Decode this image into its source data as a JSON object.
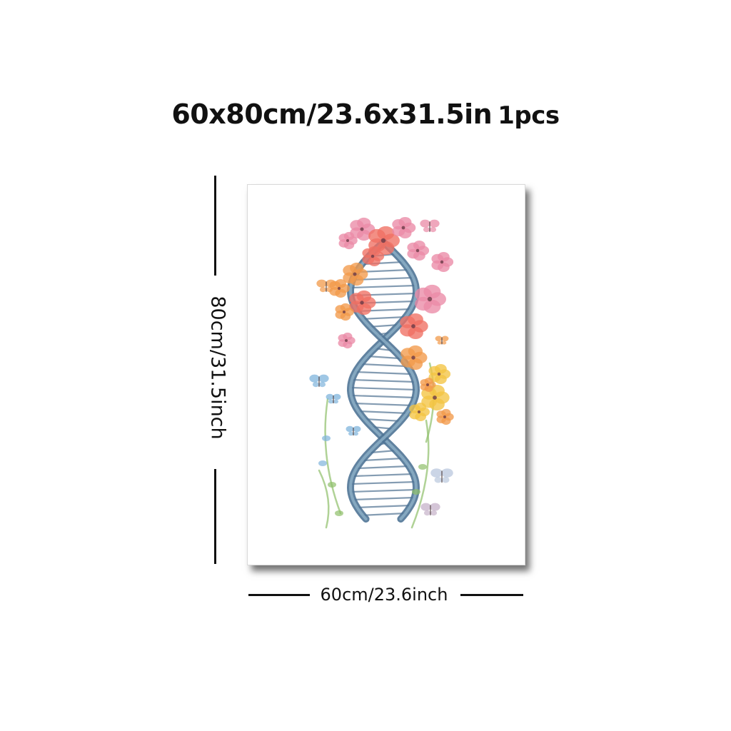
{
  "header": {
    "size_text": "60x80cm/23.6x31.5in",
    "quantity_text": "1pcs"
  },
  "dimensions": {
    "height_label": "80cm/31.5inch",
    "width_label": "60cm/23.6inch"
  },
  "artwork": {
    "subject": "dna-helix-with-flowers-and-butterflies",
    "colors": {
      "strand": "#4f7496",
      "strand_light": "#8fb1c8",
      "rung": "#5c7b99",
      "pink": "#ea8aa6",
      "coral": "#ef6f63",
      "orange": "#f29a4a",
      "yellow": "#f4c443",
      "blue": "#7fb4dc",
      "green": "#8fbf6a"
    }
  }
}
